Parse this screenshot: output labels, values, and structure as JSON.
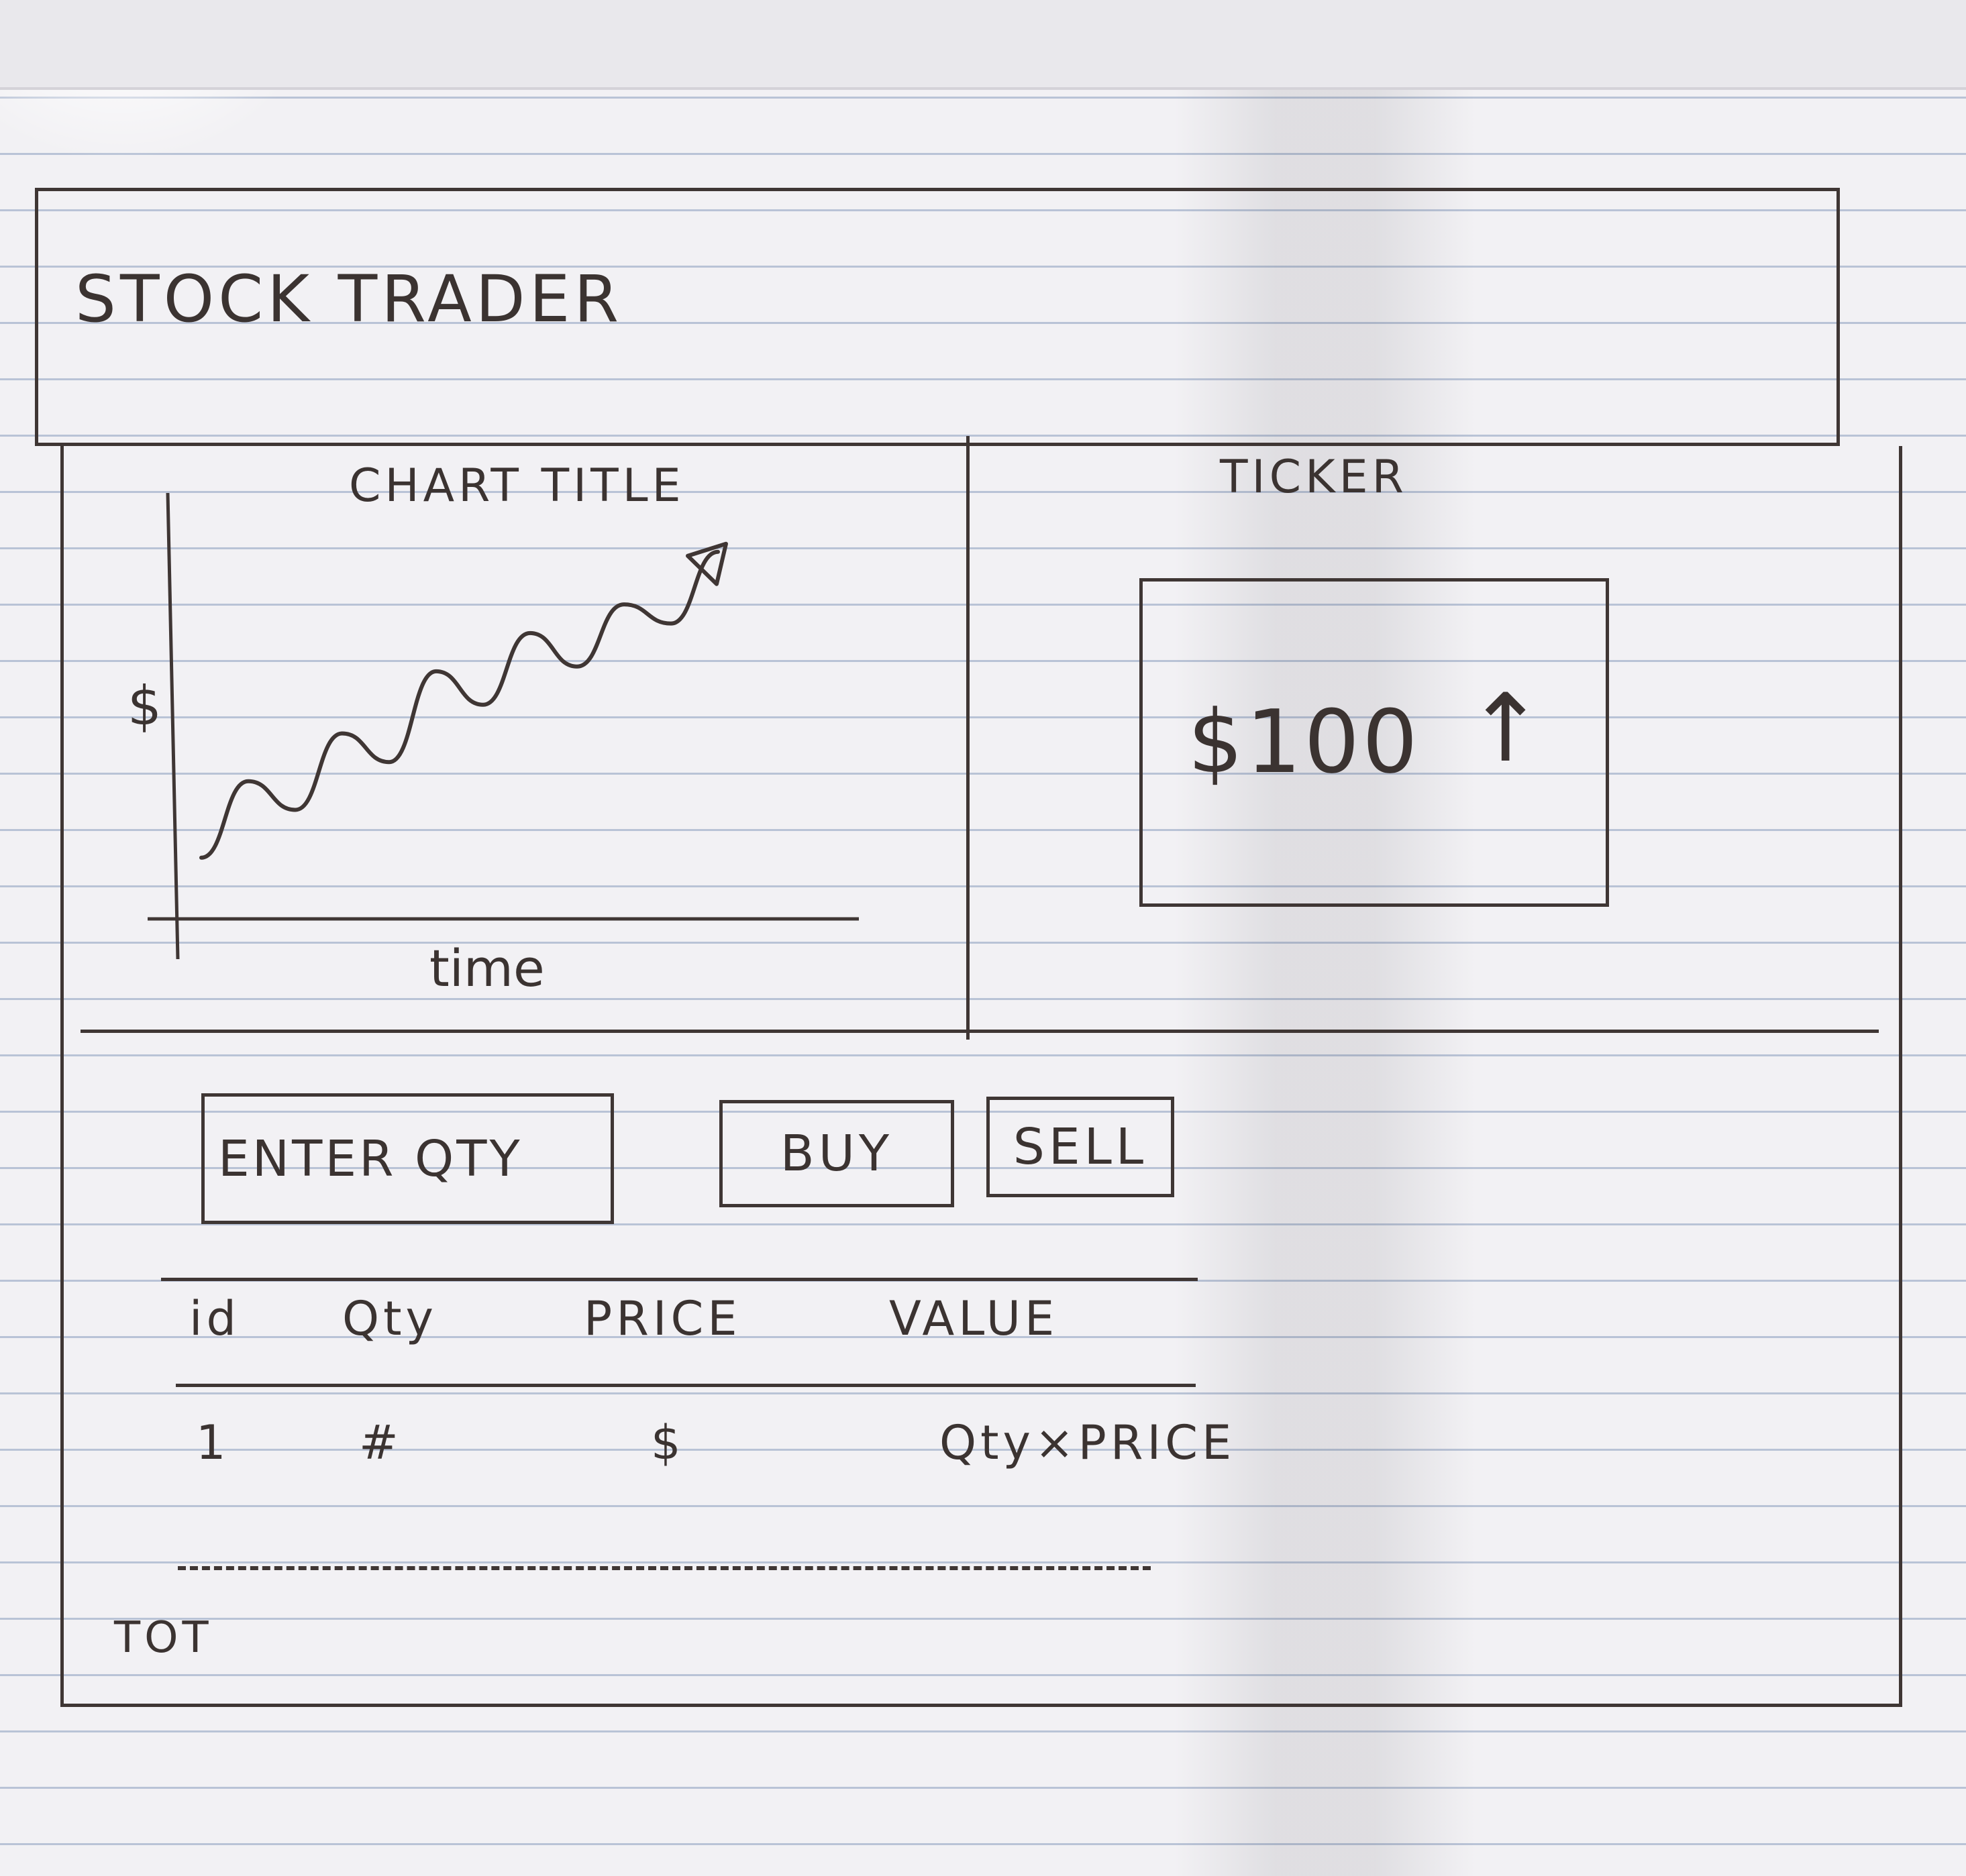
{
  "header": {
    "title": "STOCK TRADER"
  },
  "chart_panel": {
    "title": "CHART TITLE",
    "chart_data": {
      "type": "line",
      "title": "CHART TITLE",
      "xlabel": "time",
      "ylabel": "$",
      "x": [
        1,
        2,
        3,
        4,
        5,
        6,
        7,
        8,
        9,
        10,
        11,
        12
      ],
      "values": [
        1.0,
        2.6,
        2.0,
        3.6,
        3.0,
        4.9,
        4.2,
        5.7,
        5.0,
        6.3,
        5.9,
        7.4
      ],
      "ylim": [
        0,
        8
      ],
      "grid": false
    }
  },
  "ticker_panel": {
    "title": "TICKER",
    "price": "$100",
    "trend_arrow": "↑",
    "trend_icon": "arrow-up-icon"
  },
  "trade_form": {
    "qty_placeholder": "ENTER QTY",
    "buy_label": "BUY",
    "sell_label": "SELL"
  },
  "orders_table": {
    "columns": [
      "id",
      "Qty",
      "PRICE",
      "VALUE"
    ],
    "rows": [
      [
        "1",
        "#",
        "$",
        "Qty×PRICE"
      ]
    ],
    "total_label": "TOT"
  },
  "colors": {
    "ink": "#3f3634",
    "paper": "#f2f1f4",
    "rule": "#b9c3d6"
  }
}
